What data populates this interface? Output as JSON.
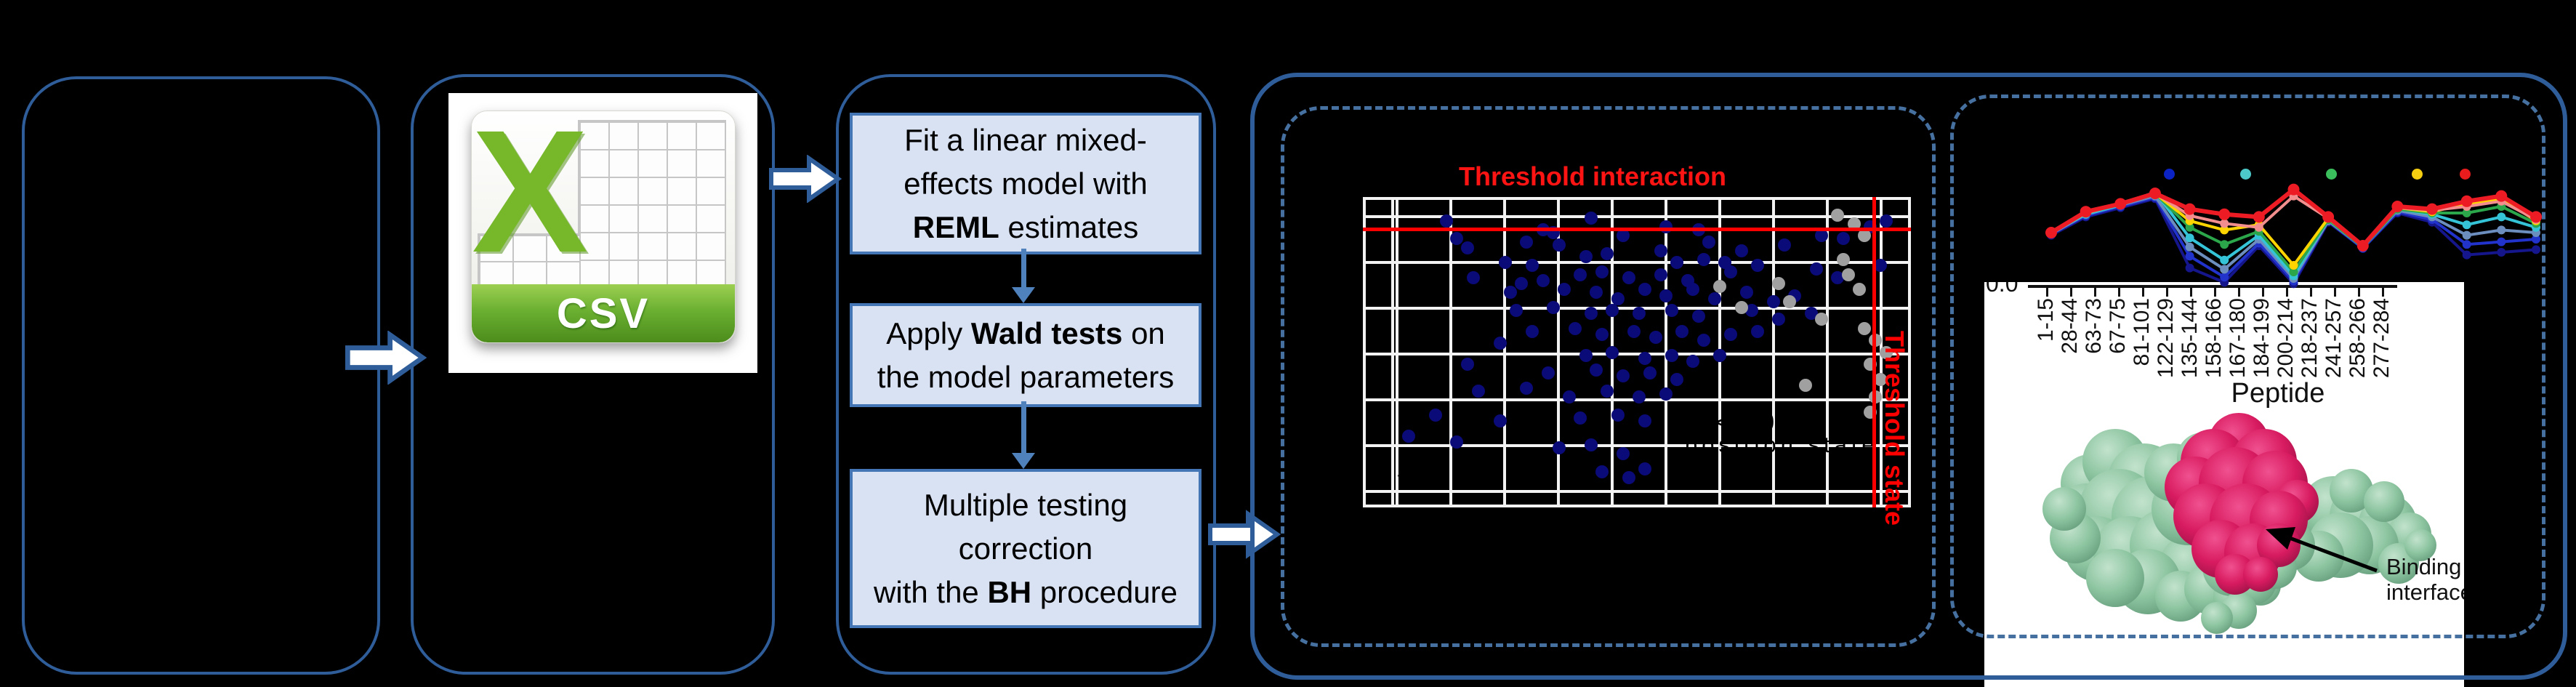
{
  "csv_icon": {
    "x_letter": "X",
    "file_type": "CSV"
  },
  "pipeline": {
    "steps": [
      {
        "name": "fit-lmm",
        "lines": [
          [
            {
              "t": "Fit a linear mixed-"
            }
          ],
          [
            {
              "t": "effects model with"
            }
          ],
          [
            {
              "t": "REML",
              "b": 1
            },
            {
              "t": " estimates"
            }
          ]
        ]
      },
      {
        "name": "wald-tests",
        "lines": [
          [
            {
              "t": "Apply "
            },
            {
              "t": "Wald tests",
              "b": 1
            },
            {
              "t": " on"
            }
          ],
          [
            {
              "t": "the model parameters"
            }
          ]
        ]
      },
      {
        "name": "bh-correction",
        "lines": [
          [
            {
              "t": "Multiple testing"
            }
          ],
          [
            {
              "t": "correction"
            }
          ],
          [
            {
              "t": "with the "
            },
            {
              "t": "BH",
              "b": 1
            },
            {
              "t": " procedure"
            }
          ]
        ]
      }
    ]
  },
  "scatter": {
    "title": "Threshold interaction",
    "right_label": "Threshold state",
    "obscured_text_1": "p < 0.05",
    "obscured_text_2": "position state",
    "obscured_text_3": "-10 -5 0"
  },
  "profile": {
    "binding_label_line1": "Binding",
    "binding_label_line2": "interface"
  },
  "colors": {
    "panel_border": "#2f5d99",
    "dashed_border": "#46709f",
    "step_fill": "#d9e2f2",
    "step_border": "#4476b5",
    "flow_arrow": "#4f81bd",
    "threshold_red": "#ff0000",
    "scatter_blue": "#0a0a78",
    "scatter_gray": "#a0a0a0",
    "grid_line": "#f2f2f2"
  },
  "chart_data": [
    {
      "type": "scatter",
      "title": "Threshold interaction",
      "right_axis_label": "Threshold state",
      "threshold_interaction_y_frac": 0.1,
      "threshold_state_x_frac": 0.94,
      "grid": true,
      "series": [
        {
          "name": "significant-blue",
          "color": "#0a0a78",
          "points": [
            [
              0.15,
              0.07
            ],
            [
              0.42,
              0.06
            ],
            [
              0.56,
              0.09
            ],
            [
              0.33,
              0.1
            ],
            [
              0.48,
              0.12
            ],
            [
              0.17,
              0.13
            ],
            [
              0.19,
              0.16
            ],
            [
              0.35,
              0.11
            ],
            [
              0.3,
              0.14
            ],
            [
              0.36,
              0.15
            ],
            [
              0.62,
              0.1
            ],
            [
              0.64,
              0.14
            ],
            [
              0.7,
              0.17
            ],
            [
              0.26,
              0.21
            ],
            [
              0.31,
              0.22
            ],
            [
              0.41,
              0.19
            ],
            [
              0.45,
              0.18
            ],
            [
              0.55,
              0.17
            ],
            [
              0.58,
              0.21
            ],
            [
              0.63,
              0.2
            ],
            [
              0.67,
              0.21
            ],
            [
              0.78,
              0.15
            ],
            [
              0.85,
              0.12
            ],
            [
              0.89,
              0.13
            ],
            [
              0.94,
              0.09
            ],
            [
              0.97,
              0.07
            ],
            [
              0.2,
              0.26
            ],
            [
              0.29,
              0.28
            ],
            [
              0.33,
              0.27
            ],
            [
              0.4,
              0.25
            ],
            [
              0.44,
              0.24
            ],
            [
              0.49,
              0.26
            ],
            [
              0.55,
              0.25
            ],
            [
              0.6,
              0.27
            ],
            [
              0.68,
              0.24
            ],
            [
              0.73,
              0.22
            ],
            [
              0.84,
              0.23
            ],
            [
              0.88,
              0.26
            ],
            [
              0.96,
              0.22
            ],
            [
              0.27,
              0.31
            ],
            [
              0.37,
              0.3
            ],
            [
              0.43,
              0.31
            ],
            [
              0.47,
              0.33
            ],
            [
              0.52,
              0.3
            ],
            [
              0.56,
              0.32
            ],
            [
              0.61,
              0.3
            ],
            [
              0.65,
              0.33
            ],
            [
              0.71,
              0.31
            ],
            [
              0.76,
              0.34
            ],
            [
              0.8,
              0.32
            ],
            [
              0.28,
              0.37
            ],
            [
              0.35,
              0.36
            ],
            [
              0.42,
              0.38
            ],
            [
              0.46,
              0.37
            ],
            [
              0.51,
              0.38
            ],
            [
              0.57,
              0.37
            ],
            [
              0.62,
              0.39
            ],
            [
              0.72,
              0.37
            ],
            [
              0.77,
              0.4
            ],
            [
              0.83,
              0.38
            ],
            [
              0.31,
              0.44
            ],
            [
              0.39,
              0.43
            ],
            [
              0.44,
              0.45
            ],
            [
              0.5,
              0.44
            ],
            [
              0.54,
              0.46
            ],
            [
              0.59,
              0.44
            ],
            [
              0.63,
              0.47
            ],
            [
              0.68,
              0.45
            ],
            [
              0.73,
              0.44
            ],
            [
              0.41,
              0.52
            ],
            [
              0.46,
              0.51
            ],
            [
              0.52,
              0.53
            ],
            [
              0.57,
              0.52
            ],
            [
              0.61,
              0.54
            ],
            [
              0.66,
              0.52
            ],
            [
              0.34,
              0.58
            ],
            [
              0.43,
              0.57
            ],
            [
              0.48,
              0.59
            ],
            [
              0.53,
              0.58
            ],
            [
              0.58,
              0.6
            ],
            [
              0.21,
              0.64
            ],
            [
              0.3,
              0.63
            ],
            [
              0.38,
              0.66
            ],
            [
              0.45,
              0.64
            ],
            [
              0.51,
              0.66
            ],
            [
              0.56,
              0.65
            ],
            [
              0.13,
              0.72
            ],
            [
              0.25,
              0.74
            ],
            [
              0.4,
              0.73
            ],
            [
              0.47,
              0.72
            ],
            [
              0.52,
              0.74
            ],
            [
              0.08,
              0.79
            ],
            [
              0.17,
              0.81
            ],
            [
              0.36,
              0.83
            ],
            [
              0.42,
              0.82
            ],
            [
              0.48,
              0.85
            ],
            [
              0.44,
              0.91
            ],
            [
              0.49,
              0.93
            ],
            [
              0.52,
              0.9
            ],
            [
              0.25,
              0.48
            ],
            [
              0.19,
              0.55
            ]
          ]
        },
        {
          "name": "nonsignificant-gray",
          "color": "#a0a0a0",
          "points": [
            [
              0.88,
              0.05
            ],
            [
              0.91,
              0.08
            ],
            [
              0.93,
              0.12
            ],
            [
              0.89,
              0.2
            ],
            [
              0.9,
              0.25
            ],
            [
              0.92,
              0.3
            ],
            [
              0.66,
              0.29
            ],
            [
              0.7,
              0.36
            ],
            [
              0.77,
              0.28
            ],
            [
              0.79,
              0.34
            ],
            [
              0.93,
              0.43
            ],
            [
              0.95,
              0.47
            ],
            [
              0.97,
              0.51
            ],
            [
              0.94,
              0.55
            ],
            [
              0.96,
              0.6
            ],
            [
              0.82,
              0.62
            ],
            [
              0.95,
              0.66
            ],
            [
              0.94,
              0.71
            ],
            [
              0.85,
              0.4
            ]
          ]
        }
      ]
    },
    {
      "type": "line",
      "categories": [
        "1-15",
        "28-44",
        "63-73",
        "67-75",
        "81-101",
        "122-129",
        "135-144",
        "158-166",
        "167-180",
        "184-199",
        "200-214",
        "218-237",
        "241-257",
        "258-266",
        "277-284"
      ],
      "xlabel": "Peptide",
      "y_axis_visible_tick": "0.0",
      "legend_dot_colors": [
        "#0b23c4",
        "#4cc8c8",
        "#3bbf5c",
        "#f5ce11",
        "#e81c1c"
      ],
      "series": [
        {
          "name": "navy",
          "color": "#15158c",
          "values": [
            0.38,
            0.52,
            0.59,
            0.66,
            0.13,
            0.02,
            0.3,
            0.01,
            0.48,
            0.28,
            0.55,
            0.48,
            0.23,
            0.25,
            0.27
          ]
        },
        {
          "name": "blue",
          "color": "#2233cc",
          "values": [
            0.39,
            0.53,
            0.6,
            0.67,
            0.22,
            0.06,
            0.32,
            0.03,
            0.49,
            0.28,
            0.56,
            0.5,
            0.31,
            0.33,
            0.35
          ]
        },
        {
          "name": "steel-blue",
          "color": "#6c8ebf",
          "values": [
            0.39,
            0.54,
            0.61,
            0.68,
            0.29,
            0.12,
            0.35,
            0.05,
            0.49,
            0.29,
            0.57,
            0.52,
            0.38,
            0.42,
            0.4
          ]
        },
        {
          "name": "cyan",
          "color": "#35c4d7",
          "values": [
            0.4,
            0.54,
            0.61,
            0.71,
            0.36,
            0.19,
            0.38,
            0.07,
            0.5,
            0.29,
            0.58,
            0.54,
            0.46,
            0.52,
            0.44
          ]
        },
        {
          "name": "green",
          "color": "#2ca64a",
          "values": [
            0.4,
            0.55,
            0.62,
            0.7,
            0.44,
            0.31,
            0.41,
            0.1,
            0.5,
            0.29,
            0.58,
            0.55,
            0.55,
            0.6,
            0.47
          ]
        },
        {
          "name": "yellow",
          "color": "#ffd400",
          "values": [
            0.4,
            0.55,
            0.62,
            0.7,
            0.49,
            0.42,
            0.46,
            0.15,
            0.51,
            0.3,
            0.59,
            0.56,
            0.62,
            0.66,
            0.49
          ]
        },
        {
          "name": "salmon",
          "color": "#f28e8e",
          "values": [
            0.4,
            0.55,
            0.62,
            0.7,
            0.53,
            0.47,
            0.44,
            0.68,
            0.51,
            0.3,
            0.59,
            0.57,
            0.6,
            0.64,
            0.5
          ]
        },
        {
          "name": "red",
          "color": "#ed1c24",
          "values": [
            0.4,
            0.56,
            0.62,
            0.7,
            0.58,
            0.54,
            0.52,
            0.73,
            0.52,
            0.3,
            0.6,
            0.58,
            0.64,
            0.68,
            0.52
          ]
        }
      ]
    }
  ]
}
